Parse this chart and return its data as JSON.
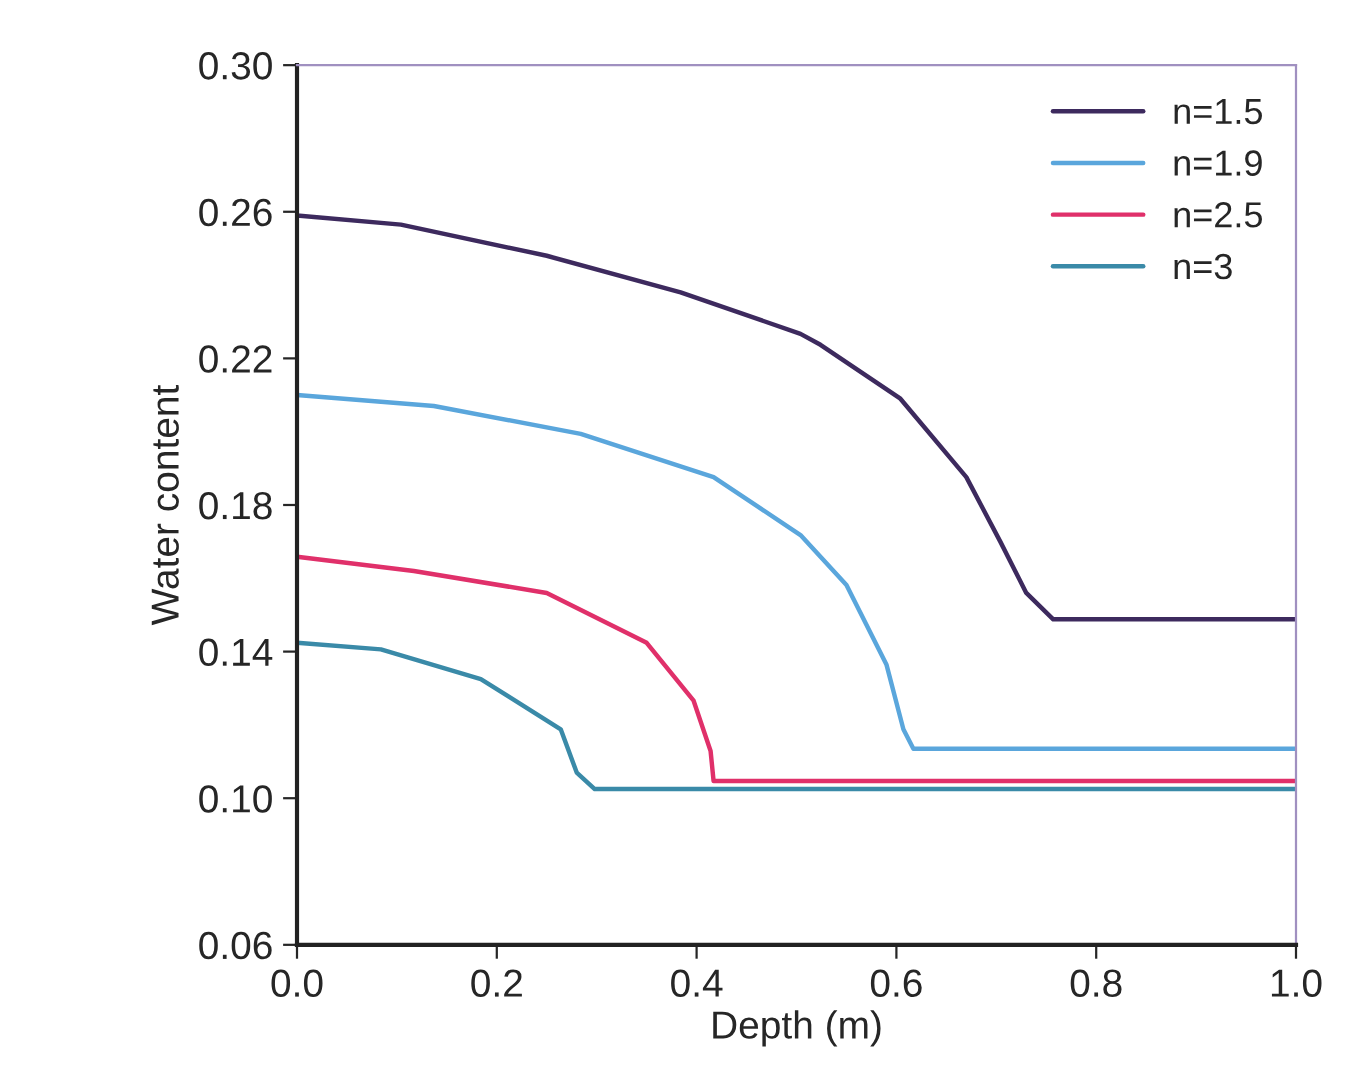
{
  "chart_data": {
    "type": "line",
    "xlabel": "Depth (m)",
    "ylabel": "Water content",
    "xlim": [
      0.0,
      1.0
    ],
    "xticks": [
      {
        "value": 0.0,
        "label": "0.0"
      },
      0.2,
      0.4,
      0.6,
      0.8,
      {
        "value": 1.0,
        "label": "1.0"
      }
    ],
    "ylim": [
      0.06,
      0.3
    ],
    "yticks": [
      0.06,
      {
        "value": 0.1,
        "label": "0.10"
      },
      0.14,
      0.18,
      0.22,
      0.26,
      {
        "value": 0.3,
        "label": "0.30"
      }
    ],
    "grid": false,
    "legend": "top right",
    "marker": "none",
    "line_style": "solid",
    "series": [
      {
        "name": "n=1.5",
        "color": "#3d2a5e",
        "x": [
          0.0,
          0.104,
          0.25,
          0.384,
          0.504,
          0.524,
          0.604,
          0.67,
          0.704,
          0.73,
          0.757,
          1.0
        ],
        "values": [
          0.259,
          0.2565,
          0.248,
          0.238,
          0.2267,
          0.2237,
          0.209,
          0.1876,
          0.17,
          0.156,
          0.1488,
          0.1488
        ]
      },
      {
        "name": "n=1.9",
        "color": "#5aa6dc",
        "x": [
          0.0,
          0.137,
          0.284,
          0.417,
          0.504,
          0.55,
          0.59,
          0.607,
          0.617,
          1.0
        ],
        "values": [
          0.21,
          0.207,
          0.1994,
          0.1876,
          0.1718,
          0.1582,
          0.1365,
          0.1188,
          0.1135,
          0.1135
        ]
      },
      {
        "name": "n=2.5",
        "color": "#e0306a",
        "x": [
          0.0,
          0.117,
          0.25,
          0.35,
          0.397,
          0.414,
          0.417,
          1.0
        ],
        "values": [
          0.1659,
          0.162,
          0.156,
          0.1424,
          0.1266,
          0.1129,
          0.1047,
          0.1047
        ]
      },
      {
        "name": "n=3",
        "color": "#3a8aa8",
        "x": [
          0.0,
          0.084,
          0.184,
          0.264,
          0.28,
          0.298,
          1.0
        ],
        "values": [
          0.1424,
          0.1406,
          0.1325,
          0.1188,
          0.107,
          0.1025,
          0.1025
        ]
      }
    ]
  }
}
